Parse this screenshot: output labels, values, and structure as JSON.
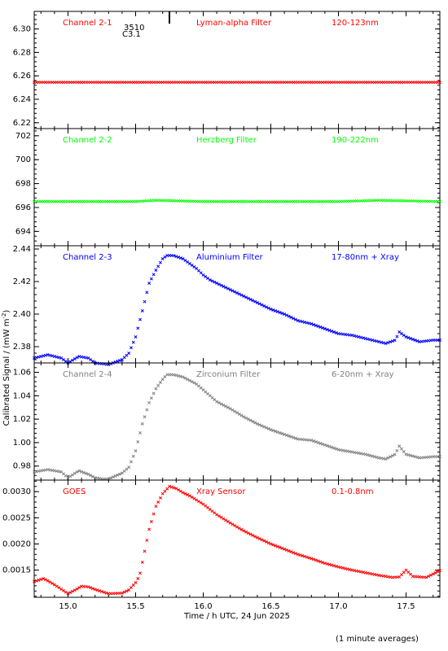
{
  "figure": {
    "ylabel": "Calibrated Signal / (mW m",
    "ylabel_sup": "-2",
    "ylabel_end": ")",
    "xlabel": "Time / h UTC, 24 Jun 2025",
    "footer": "(1 minute averages)"
  },
  "chart_data": [
    {
      "type": "scatter",
      "panel": "Channel 2-1",
      "labels": [
        "Channel 2-1",
        "Lyman-alpha Filter",
        "120-123nm"
      ],
      "color": "#ff0000",
      "ylim": [
        6.215,
        6.315
      ],
      "yticks": [
        6.22,
        6.24,
        6.26,
        6.28,
        6.3
      ],
      "ytick_labels": [
        "6.22",
        "6.24",
        "6.26",
        "6.28",
        "6.30"
      ],
      "annotation": {
        "text_top": "3510",
        "text_bottom": "C3.1",
        "x": 15.75
      },
      "x": [
        14.75,
        17.75
      ],
      "y": [
        6.2545,
        6.2545
      ]
    },
    {
      "type": "scatter",
      "panel": "Channel 2-2",
      "labels": [
        "Channel 2-2",
        "Herzberg Filter",
        "190-222nm"
      ],
      "color": "#00ff00",
      "ylim": [
        692.8,
        702.6
      ],
      "yticks": [
        694,
        696,
        698,
        700,
        702
      ],
      "ytick_labels": [
        "694",
        "696",
        "698",
        "700",
        "702"
      ],
      "x": [
        14.75,
        15.5,
        15.65,
        16.0,
        16.5,
        17.0,
        17.3,
        17.75
      ],
      "y": [
        696.5,
        696.5,
        696.6,
        696.5,
        696.5,
        696.5,
        696.6,
        696.5
      ]
    },
    {
      "type": "scatter",
      "panel": "Channel 2-3",
      "labels": [
        "Channel 2-3",
        "Aluminium Filter",
        "17-80nm + Xray"
      ],
      "color": "#0000ff",
      "ylim": [
        2.37,
        2.442
      ],
      "yticks": [
        2.38,
        2.4,
        2.42,
        2.44
      ],
      "ytick_labels": [
        "2.38",
        "2.40",
        "2.42",
        "2.44"
      ],
      "x": [
        14.75,
        14.85,
        14.95,
        15.0,
        15.08,
        15.15,
        15.2,
        15.3,
        15.4,
        15.45,
        15.5,
        15.55,
        15.6,
        15.65,
        15.7,
        15.73,
        15.78,
        15.85,
        15.9,
        15.95,
        16.0,
        16.05,
        16.1,
        16.2,
        16.3,
        16.4,
        16.5,
        16.6,
        16.7,
        16.8,
        16.9,
        17.0,
        17.1,
        17.2,
        17.3,
        17.35,
        17.42,
        17.45,
        17.5,
        17.6,
        17.7,
        17.75
      ],
      "y": [
        2.373,
        2.375,
        2.373,
        2.37,
        2.374,
        2.373,
        2.37,
        2.369,
        2.372,
        2.376,
        2.386,
        2.402,
        2.419,
        2.427,
        2.434,
        2.436,
        2.436,
        2.434,
        2.431,
        2.428,
        2.424,
        2.421,
        2.419,
        2.415,
        2.411,
        2.407,
        2.403,
        2.4,
        2.396,
        2.394,
        2.391,
        2.388,
        2.387,
        2.385,
        2.383,
        2.382,
        2.384,
        2.389,
        2.386,
        2.383,
        2.384,
        2.384
      ]
    },
    {
      "type": "scatter",
      "panel": "Channel 2-4",
      "labels": [
        "Channel 2-4",
        "Zirconium Filter",
        "6-20nm + Xray"
      ],
      "color": "#808080",
      "ylim": [
        0.968,
        1.068
      ],
      "yticks": [
        0.98,
        1.0,
        1.02,
        1.04,
        1.06
      ],
      "ytick_labels": [
        "0.98",
        "1.00",
        "1.02",
        "1.04",
        "1.06"
      ],
      "x": [
        14.75,
        14.85,
        14.95,
        15.0,
        15.08,
        15.15,
        15.2,
        15.25,
        15.3,
        15.4,
        15.45,
        15.5,
        15.55,
        15.6,
        15.65,
        15.7,
        15.73,
        15.78,
        15.85,
        15.9,
        15.95,
        16.0,
        16.05,
        16.1,
        16.2,
        16.3,
        16.4,
        16.5,
        16.6,
        16.7,
        16.8,
        16.9,
        17.0,
        17.1,
        17.2,
        17.3,
        17.35,
        17.42,
        17.45,
        17.5,
        17.6,
        17.7,
        17.75
      ],
      "y": [
        0.975,
        0.977,
        0.975,
        0.97,
        0.976,
        0.973,
        0.97,
        0.969,
        0.969,
        0.974,
        0.979,
        0.993,
        1.016,
        1.034,
        1.046,
        1.054,
        1.058,
        1.058,
        1.056,
        1.053,
        1.05,
        1.045,
        1.04,
        1.035,
        1.029,
        1.022,
        1.016,
        1.011,
        1.007,
        1.003,
        1.002,
        0.998,
        0.994,
        0.992,
        0.99,
        0.987,
        0.986,
        0.99,
        0.997,
        0.99,
        0.987,
        0.988,
        0.988
      ]
    },
    {
      "type": "scatter",
      "panel": "GOES",
      "labels": [
        "GOES",
        "Xray Sensor",
        "0.1-0.8nm"
      ],
      "color": "#ff0000",
      "ylim": [
        0.00098,
        0.00322
      ],
      "yticks": [
        0.0015,
        0.002,
        0.0025,
        0.003
      ],
      "ytick_labels": [
        "0.0015",
        "0.0020",
        "0.0025",
        "0.0030"
      ],
      "x": [
        14.75,
        14.82,
        14.9,
        15.0,
        15.06,
        15.1,
        15.15,
        15.2,
        15.3,
        15.4,
        15.45,
        15.5,
        15.53,
        15.55,
        15.6,
        15.65,
        15.7,
        15.75,
        15.8,
        15.85,
        15.9,
        16.0,
        16.1,
        16.2,
        16.3,
        16.4,
        16.5,
        16.6,
        16.7,
        16.8,
        16.9,
        17.0,
        17.1,
        17.2,
        17.3,
        17.4,
        17.45,
        17.5,
        17.55,
        17.65,
        17.75
      ],
      "y": [
        0.00128,
        0.00134,
        0.00122,
        0.00105,
        0.00113,
        0.00119,
        0.00118,
        0.00113,
        0.00105,
        0.00106,
        0.00112,
        0.00126,
        0.0014,
        0.00165,
        0.00228,
        0.00272,
        0.00296,
        0.0031,
        0.00306,
        0.00298,
        0.00292,
        0.00276,
        0.00256,
        0.0024,
        0.00225,
        0.00212,
        0.002,
        0.0019,
        0.0018,
        0.00172,
        0.00163,
        0.00156,
        0.0015,
        0.00145,
        0.0014,
        0.00136,
        0.00137,
        0.0015,
        0.00138,
        0.00136,
        0.00149
      ]
    }
  ],
  "x_axis": {
    "xlim": [
      14.75,
      17.75
    ],
    "ticks": [
      15.0,
      15.5,
      16.0,
      16.5,
      17.0,
      17.5
    ],
    "tick_labels": [
      "15.0",
      "15.5",
      "16.0",
      "16.5",
      "17.0",
      "17.5"
    ]
  }
}
